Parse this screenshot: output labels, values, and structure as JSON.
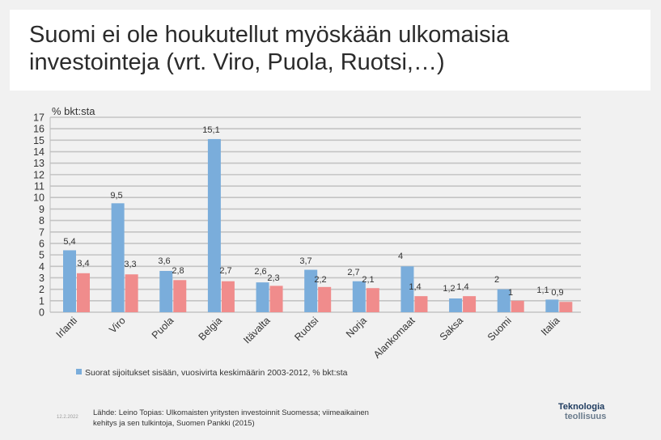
{
  "slide": {
    "title_line1": "Suomi ei ole houkutellut myöskään ulkomaisia",
    "title_line2": "investointeja (vrt. Viro, Puola, Ruotsi,…)",
    "date": "12.2.2022",
    "source_line1": "Lähde: Leino Topias: Ulkomaisten yritysten investoinnit Suomessa; viimeaikainen",
    "source_line2": "kehitys ja sen tulkintoja, Suomen Pankki (2015)",
    "logo_line1": "Teknologia",
    "logo_line2": "teollisuus"
  },
  "chart_data": {
    "type": "bar",
    "unit_label": "% bkt:sta",
    "ylim": [
      0,
      17
    ],
    "yticks": [
      0,
      1,
      2,
      3,
      4,
      5,
      6,
      7,
      8,
      9,
      10,
      11,
      12,
      13,
      14,
      15,
      16,
      17
    ],
    "grid": true,
    "legend_position": "bottom",
    "categories": [
      "Irlanti",
      "Viro",
      "Puola",
      "Belgia",
      "Itävalta",
      "Ruotsi",
      "Norja",
      "Alankomaat",
      "Saksa",
      "Suomi",
      "Italia"
    ],
    "series": [
      {
        "name": "Suorat sijoitukset sisään, vuosivirta keskimäärin 2003-2012, % bkt:sta",
        "color": "#7aaddb",
        "values": [
          5.4,
          9.5,
          3.6,
          15.1,
          2.6,
          3.7,
          2.7,
          4,
          1.2,
          2,
          1.1
        ],
        "labels": [
          "5,4",
          "9,5",
          "3,6",
          "15,1",
          "2,6",
          "3,7",
          "2,7",
          "4",
          "1,2",
          "2",
          "1,1"
        ]
      },
      {
        "color": "#f08c8c",
        "values": [
          3.4,
          3.3,
          2.8,
          2.7,
          2.3,
          2.2,
          2.1,
          1.4,
          1.4,
          1,
          0.9
        ],
        "labels": [
          "3,4",
          "3,3",
          "2,8",
          "2,7",
          "2,3",
          "2,2",
          "2,1",
          "1,4",
          "1,4",
          "1",
          "0,9"
        ]
      }
    ]
  }
}
